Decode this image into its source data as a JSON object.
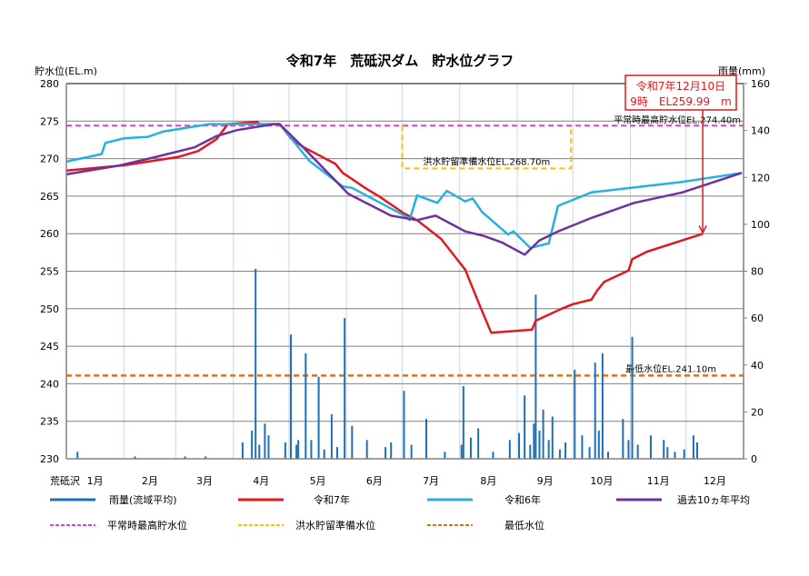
{
  "chart_data": {
    "type": "line",
    "title": "令和7年　荒砥沢ダム　貯水位グラフ",
    "ylabel_left": "貯水位(EL.m)",
    "ylabel_right": "雨量(mm)",
    "ylim_left": [
      230,
      280
    ],
    "ylim_right": [
      0,
      160
    ],
    "yticks_left": [
      "230",
      "235",
      "240",
      "245",
      "250",
      "255",
      "260",
      "265",
      "270",
      "275",
      "280"
    ],
    "yticks_right": [
      "0",
      "20",
      "40",
      "60",
      "80",
      "100",
      "120",
      "140",
      "160"
    ],
    "x_axis_name": "荒砥沢",
    "xticks": [
      "1月",
      "2月",
      "3月",
      "4月",
      "5月",
      "6月",
      "7月",
      "8月",
      "9月",
      "10月",
      "11月",
      "12月"
    ],
    "grid": true,
    "legend_placement": "bottom",
    "legend": [
      {
        "label": "雨量(流域平均)",
        "color": "#1f6fb4",
        "style": "solid"
      },
      {
        "label": "令和7年",
        "color": "#e0191e",
        "style": "solid"
      },
      {
        "label": "令和6年",
        "color": "#27b0e0",
        "style": "solid"
      },
      {
        "label": "過去10ヵ年平均",
        "color": "#7030a0",
        "style": "solid"
      },
      {
        "label": "平常時最高貯水位",
        "color": "#e040c8",
        "style": "dashed"
      },
      {
        "label": "洪水貯留準備水位",
        "color": "#f5c400",
        "style": "dashed"
      },
      {
        "label": "最低水位",
        "color": "#e07020",
        "style": "dashed"
      }
    ],
    "reference_lines": {
      "normal_max": {
        "value": 274.4,
        "label": "平常時最高貯水位EL.274.40m",
        "color": "#e040c8"
      },
      "flood_reserve": {
        "value": 268.7,
        "from": "7/1",
        "to": "9/30",
        "label": "洪水貯留準備水位EL.268.70m",
        "color": "#f5c400"
      },
      "minimum": {
        "value": 241.1,
        "label": "最低水位EL.241.10m",
        "color": "#e07020"
      }
    },
    "annotation": {
      "line1": "令和7年12月10日",
      "line2": "9時　EL259.99　m",
      "date": "12/10",
      "value": 259.99,
      "color": "#e0191e"
    },
    "series": [
      {
        "name": "令和7年",
        "axis": "left",
        "color": "#e0191e",
        "points": [
          [
            "1/1",
            268.4
          ],
          [
            "2/1",
            269.1
          ],
          [
            "3/2",
            270.2
          ],
          [
            "3/13",
            271.0
          ],
          [
            "3/23",
            272.6
          ],
          [
            "3/29",
            274.6
          ],
          [
            "4/14",
            274.9
          ],
          [
            "4/15",
            274.6
          ],
          [
            "4/26",
            274.6
          ],
          [
            "5/2",
            272.7
          ],
          [
            "5/9",
            271.5
          ],
          [
            "5/26",
            269.3
          ],
          [
            "5/30",
            268.1
          ],
          [
            "6/11",
            266.1
          ],
          [
            "6/19",
            264.9
          ],
          [
            "7/2",
            262.7
          ],
          [
            "7/9",
            261.8
          ],
          [
            "7/22",
            259.3
          ],
          [
            "8/4",
            255.2
          ],
          [
            "8/12",
            250.3
          ],
          [
            "8/18",
            246.8
          ],
          [
            "9/9",
            247.2
          ],
          [
            "9/11",
            248.4
          ],
          [
            "9/25",
            250.0
          ],
          [
            "10/1",
            250.6
          ],
          [
            "10/11",
            251.2
          ],
          [
            "10/14",
            252.4
          ],
          [
            "10/18",
            253.6
          ],
          [
            "10/31",
            255.1
          ],
          [
            "11/2",
            256.6
          ],
          [
            "11/10",
            257.6
          ],
          [
            "11/29",
            259.1
          ],
          [
            "12/10",
            259.99
          ]
        ]
      },
      {
        "name": "令和6年",
        "axis": "left",
        "color": "#27b0e0",
        "points": [
          [
            "1/1",
            269.6
          ],
          [
            "1/20",
            270.6
          ],
          [
            "1/22",
            272.1
          ],
          [
            "2/1",
            272.7
          ],
          [
            "2/14",
            272.9
          ],
          [
            "2/22",
            273.6
          ],
          [
            "3/19",
            274.6
          ],
          [
            "4/26",
            274.6
          ],
          [
            "5/12",
            269.7
          ],
          [
            "5/30",
            266.3
          ],
          [
            "6/4",
            266.1
          ],
          [
            "7/3",
            262.3
          ],
          [
            "7/5",
            261.8
          ],
          [
            "7/9",
            265.1
          ],
          [
            "7/20",
            264.1
          ],
          [
            "7/25",
            265.7
          ],
          [
            "8/4",
            264.3
          ],
          [
            "8/8",
            264.7
          ],
          [
            "8/13",
            262.9
          ],
          [
            "8/27",
            259.9
          ],
          [
            "8/30",
            260.3
          ],
          [
            "9/8",
            258.1
          ],
          [
            "9/18",
            258.7
          ],
          [
            "9/23",
            263.7
          ],
          [
            "10/11",
            265.5
          ],
          [
            "11/29",
            266.9
          ],
          [
            "12/31",
            268.1
          ]
        ]
      },
      {
        "name": "過去10ヵ年平均",
        "axis": "left",
        "color": "#7030a0",
        "points": [
          [
            "1/1",
            267.9
          ],
          [
            "1/30",
            269.1
          ],
          [
            "2/18",
            270.2
          ],
          [
            "3/11",
            271.5
          ],
          [
            "3/23",
            273.0
          ],
          [
            "4/3",
            273.8
          ],
          [
            "4/23",
            274.6
          ],
          [
            "4/26",
            274.6
          ],
          [
            "5/9",
            271.4
          ],
          [
            "6/2",
            265.3
          ],
          [
            "6/25",
            262.4
          ],
          [
            "7/9",
            261.8
          ],
          [
            "7/19",
            262.4
          ],
          [
            "8/4",
            260.3
          ],
          [
            "8/14",
            259.7
          ],
          [
            "8/24",
            258.8
          ],
          [
            "9/5",
            257.2
          ],
          [
            "9/13",
            259.1
          ],
          [
            "9/23",
            260.3
          ],
          [
            "10/11",
            262.1
          ],
          [
            "11/3",
            264.1
          ],
          [
            "11/29",
            265.5
          ],
          [
            "12/31",
            268.1
          ]
        ]
      },
      {
        "name": "雨量(流域平均)",
        "axis": "right",
        "type": "bar",
        "color": "#1f6fb4",
        "points": [
          [
            "1/7",
            3
          ],
          [
            "2/7",
            1
          ],
          [
            "3/6",
            1
          ],
          [
            "3/17",
            1
          ],
          [
            "4/6",
            7
          ],
          [
            "4/11",
            12
          ],
          [
            "4/13",
            81
          ],
          [
            "4/15",
            6
          ],
          [
            "4/18",
            15
          ],
          [
            "4/20",
            10
          ],
          [
            "4/29",
            7
          ],
          [
            "5/2",
            53
          ],
          [
            "5/5",
            6
          ],
          [
            "5/6",
            8
          ],
          [
            "5/10",
            45
          ],
          [
            "5/13",
            8
          ],
          [
            "5/17",
            35
          ],
          [
            "5/20",
            4
          ],
          [
            "5/24",
            19
          ],
          [
            "5/27",
            5
          ],
          [
            "5/31",
            60
          ],
          [
            "6/4",
            14
          ],
          [
            "6/12",
            8
          ],
          [
            "6/22",
            5
          ],
          [
            "6/25",
            7
          ],
          [
            "7/2",
            29
          ],
          [
            "7/6",
            6
          ],
          [
            "7/14",
            17
          ],
          [
            "7/24",
            3
          ],
          [
            "8/2",
            6
          ],
          [
            "8/3",
            31
          ],
          [
            "8/7",
            9
          ],
          [
            "8/11",
            13
          ],
          [
            "8/19",
            3
          ],
          [
            "8/28",
            8
          ],
          [
            "9/2",
            11
          ],
          [
            "9/5",
            27
          ],
          [
            "9/8",
            6
          ],
          [
            "9/10",
            15
          ],
          [
            "9/11",
            70
          ],
          [
            "9/13",
            12
          ],
          [
            "9/15",
            21
          ],
          [
            "9/18",
            8
          ],
          [
            "9/20",
            18
          ],
          [
            "9/24",
            4
          ],
          [
            "9/27",
            7
          ],
          [
            "10/2",
            38
          ],
          [
            "10/6",
            10
          ],
          [
            "10/10",
            5
          ],
          [
            "10/13",
            41
          ],
          [
            "10/15",
            12
          ],
          [
            "10/17",
            45
          ],
          [
            "10/20",
            3
          ],
          [
            "10/28",
            17
          ],
          [
            "10/31",
            8
          ],
          [
            "11/2",
            52
          ],
          [
            "11/5",
            6
          ],
          [
            "11/12",
            10
          ],
          [
            "11/19",
            8
          ],
          [
            "11/21",
            5
          ],
          [
            "11/25",
            3
          ],
          [
            "11/30",
            4
          ],
          [
            "12/5",
            10
          ],
          [
            "12/7",
            7
          ]
        ]
      }
    ]
  }
}
